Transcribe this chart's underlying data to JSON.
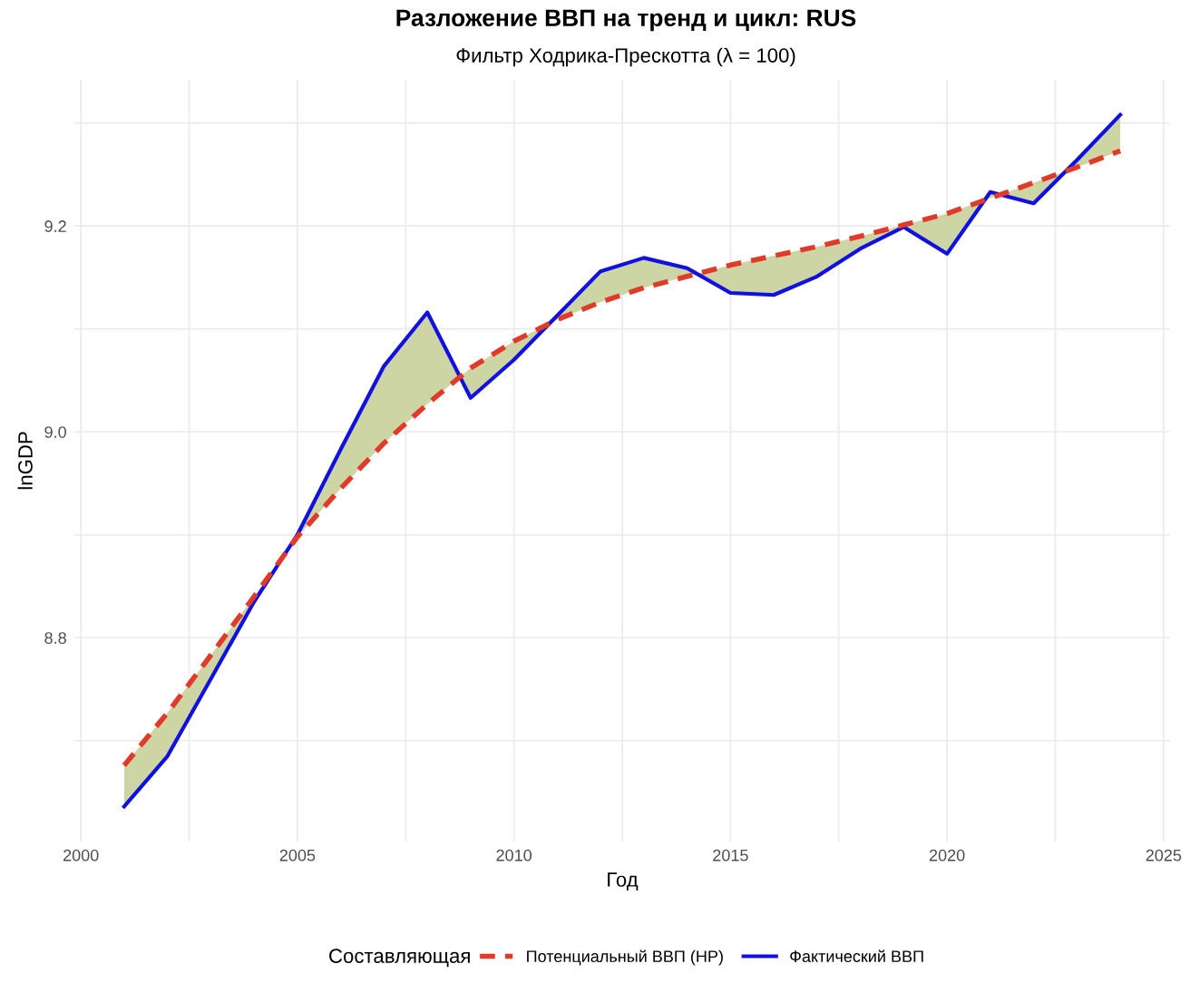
{
  "chart_data": {
    "type": "line",
    "title": "Разложение ВВП на тренд и цикл: RUS",
    "subtitle": "Фильтр Ходрика-Прескотта (λ = 100)",
    "xlabel": "Год",
    "ylabel": "lnGDP",
    "legend_title": "Составляющая",
    "x": [
      2001,
      2002,
      2003,
      2004,
      2005,
      2006,
      2007,
      2008,
      2009,
      2010,
      2011,
      2012,
      2013,
      2014,
      2015,
      2016,
      2017,
      2018,
      2019,
      2020,
      2021,
      2022,
      2023,
      2024
    ],
    "series": [
      {
        "name": "Потенциальный ВВП (HP)",
        "color": "#e03a2a",
        "line_style": "dashed",
        "values": [
          8.676,
          8.727,
          8.783,
          8.84,
          8.898,
          8.945,
          8.989,
          9.027,
          9.062,
          9.088,
          9.109,
          9.126,
          9.14,
          9.151,
          9.162,
          9.171,
          9.18,
          9.19,
          9.201,
          9.212,
          9.227,
          9.242,
          9.257,
          9.273
        ]
      },
      {
        "name": "Фактический ВВП",
        "color": "#1010e0",
        "line_style": "solid",
        "lower": [
          8.676,
          8.727,
          8.783,
          8.84,
          8.898,
          8.945,
          8.989,
          9.027,
          9.062,
          9.088,
          9.109,
          9.126,
          9.14,
          9.151,
          9.162,
          9.171,
          9.18,
          9.19,
          9.201,
          9.212,
          9.227,
          9.242,
          9.257,
          9.273
        ],
        "upper": [
          8.636,
          8.685,
          8.76,
          8.835,
          8.9,
          8.983,
          9.064,
          9.116,
          9.033,
          9.07,
          9.113,
          9.156,
          9.169,
          9.159,
          9.135,
          9.133,
          9.151,
          9.178,
          9.199,
          9.173,
          9.233,
          9.222,
          9.264,
          9.308
        ],
        "values": [
          8.636,
          8.685,
          8.76,
          8.835,
          8.9,
          8.983,
          9.064,
          9.116,
          9.033,
          9.07,
          9.113,
          9.156,
          9.169,
          9.159,
          9.135,
          9.133,
          9.151,
          9.178,
          9.199,
          9.173,
          9.233,
          9.222,
          9.264,
          9.308
        ]
      }
    ],
    "xlim": [
      1999.85,
      2025.15
    ],
    "ylim": [
      8.602,
      9.342
    ],
    "xticks": [
      2000,
      {
        "value": 2002.5,
        "label": null
      },
      2005,
      {
        "value": 2007.5,
        "label": null
      },
      2010,
      {
        "value": 2012.5,
        "label": null
      },
      2015,
      {
        "value": 2017.5,
        "label": null
      },
      2020,
      {
        "value": 2022.5,
        "label": null
      },
      2025
    ],
    "yticks": [
      {
        "value": 8.7,
        "label": null
      },
      {
        "value": 8.8,
        "label": "8.8"
      },
      {
        "value": 8.9,
        "label": null
      },
      {
        "value": 9.0,
        "label": "9.0"
      },
      {
        "value": 9.1,
        "label": null
      },
      {
        "value": 9.2,
        "label": "9.2"
      },
      {
        "value": 9.3,
        "label": null
      }
    ],
    "grid": true,
    "legend": "bottom",
    "marker": "none"
  }
}
